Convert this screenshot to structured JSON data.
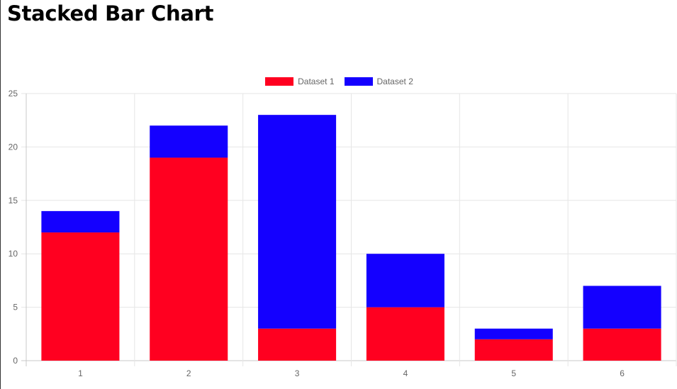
{
  "page": {
    "title": "Stacked Bar Chart"
  },
  "chart_data": {
    "type": "bar",
    "stacked": true,
    "title": "",
    "xlabel": "",
    "ylabel": "",
    "categories": [
      "1",
      "2",
      "3",
      "4",
      "5",
      "6"
    ],
    "series": [
      {
        "name": "Dataset 1",
        "color": "#ff0020",
        "values": [
          12,
          19,
          3,
          5,
          2,
          3
        ]
      },
      {
        "name": "Dataset 2",
        "color": "#1400ff",
        "values": [
          2,
          3,
          20,
          5,
          1,
          4
        ]
      }
    ],
    "ylim": [
      0,
      25
    ],
    "yticks": [
      "0",
      "5",
      "10",
      "15",
      "20",
      "25"
    ],
    "grid": true,
    "legend_position": "top"
  }
}
